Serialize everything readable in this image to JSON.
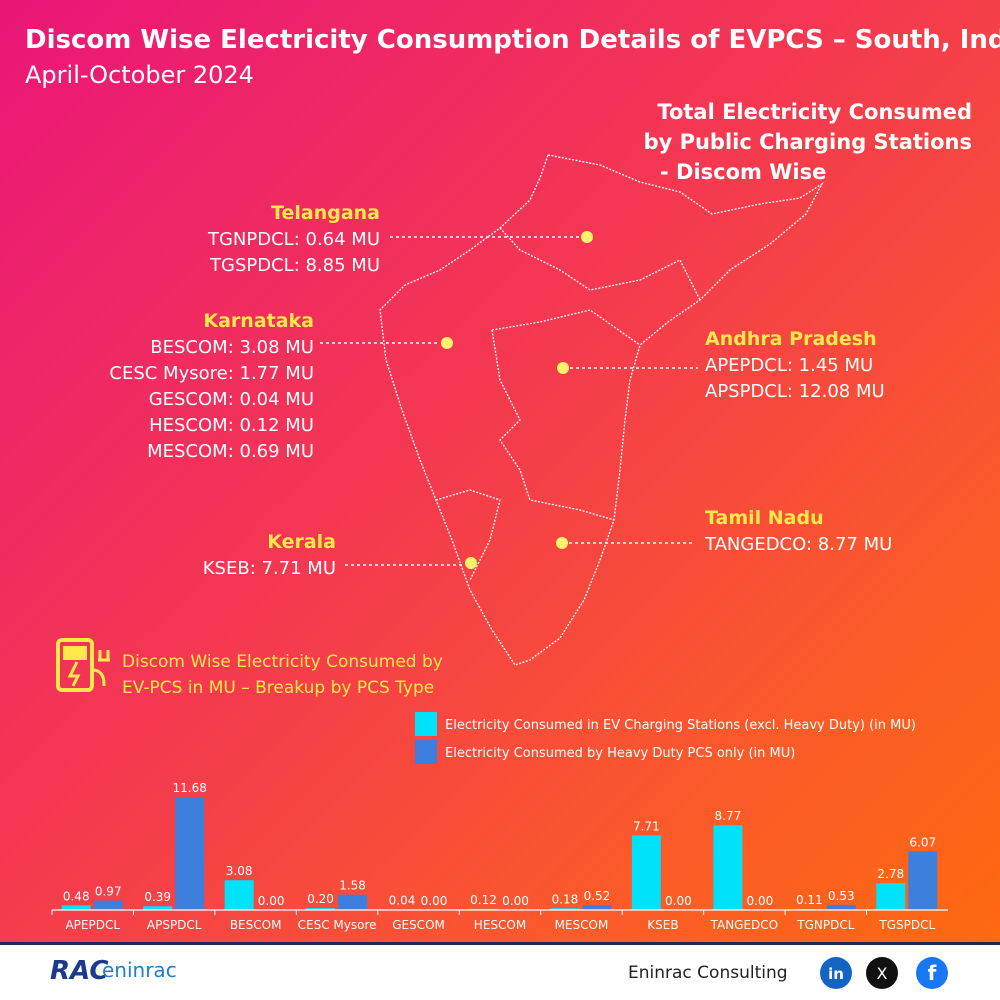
{
  "header": {
    "title": "Discom Wise Electricity Consumption Details of EVPCS – South, India",
    "subtitle": "April-October 2024"
  },
  "map": {
    "heading": [
      "Total Electricity Consumed",
      "by Public Charging Stations",
      "- Discom Wise"
    ],
    "regions": [
      {
        "name": "Telangana",
        "entries": [
          "TGNPDCL: 0.64 MU",
          "TGSPDCL: 8.85 MU"
        ]
      },
      {
        "name": "Karnataka",
        "entries": [
          "BESCOM: 3.08 MU",
          "CESC Mysore: 1.77 MU",
          "GESCOM: 0.04 MU",
          "HESCOM: 0.12 MU",
          "MESCOM: 0.69 MU"
        ]
      },
      {
        "name": "Andhra Pradesh",
        "entries": [
          "APEPDCL: 1.45 MU",
          "APSPDCL: 12.08 MU"
        ]
      },
      {
        "name": "Tamil Nadu",
        "entries": [
          "TANGEDCO: 8.77  MU"
        ]
      },
      {
        "name": "Kerala",
        "entries": [
          "KSEB: 7.71 MU"
        ]
      }
    ]
  },
  "chart_data": {
    "type": "bar",
    "title": "Discom Wise Electricity Consumed by EV-PCS in MU – Breakup by PCS Type",
    "categories": [
      "APEPDCL",
      "APSPDCL",
      "BESCOM",
      "CESC Mysore",
      "GESCOM",
      "HESCOM",
      "MESCOM",
      "KSEB",
      "TANGEDCO",
      "TGNPDCL",
      "TGSPDCL"
    ],
    "series": [
      {
        "name": "Electricity Consumed in EV Charging Stations (excl. Heavy Duty) (in MU)",
        "color": "#00e1fa",
        "values": [
          0.48,
          0.39,
          3.08,
          0.2,
          0.04,
          0.12,
          0.18,
          7.71,
          8.77,
          0.11,
          2.78
        ],
        "value_labels": [
          "0.48",
          "0.39",
          "3.08",
          "0.20",
          "0.04",
          "0.12",
          "0.18",
          "7.71",
          "8.77",
          "0.11",
          "2.78"
        ]
      },
      {
        "name": "Electricity Consumed by Heavy Duty PCS only (in MU)",
        "color": "#3d7fdc",
        "values": [
          0.97,
          11.68,
          0,
          1.58,
          0,
          0,
          0.52,
          0,
          0,
          0.53,
          6.07
        ],
        "value_labels": [
          "0.97",
          "11.68",
          "0.00",
          "1.58",
          "0.00",
          "0.00",
          "0.52",
          "0.00",
          "0.00",
          "0.53",
          "6.07"
        ]
      }
    ]
  },
  "footer": {
    "logo": [
      "RAC",
      "eninrac"
    ],
    "brand": "Eninrac Consulting",
    "social": [
      "in",
      "X",
      "f"
    ]
  }
}
